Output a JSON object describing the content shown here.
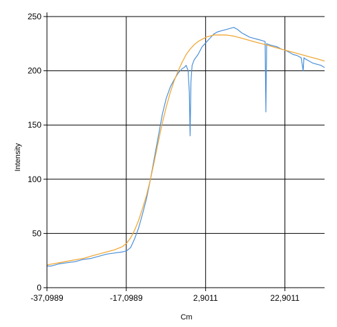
{
  "chart_data": {
    "type": "line",
    "title": "",
    "xlabel": "Cm",
    "ylabel": "Intensity",
    "xlim": [
      -37.0989,
      32.9011
    ],
    "ylim": [
      0,
      250
    ],
    "x_ticks": [
      -37.0989,
      -17.0989,
      2.9011,
      22.9011
    ],
    "x_tick_labels": [
      "-37,0989",
      "-17,0989",
      "2,9011",
      "22,9011"
    ],
    "y_ticks": [
      0,
      50,
      100,
      150,
      200,
      250
    ],
    "y_tick_labels": [
      "0",
      "50",
      "100",
      "150",
      "200",
      "250"
    ],
    "grid": true,
    "legend": "none",
    "series": [
      {
        "style": "noisy measured trace",
        "color": "#4a8fd9",
        "x": [
          -37.1,
          -36,
          -34,
          -32,
          -30,
          -28,
          -26,
          -24,
          -22,
          -20,
          -18,
          -17,
          -16,
          -15,
          -14,
          -13,
          -12,
          -11,
          -10,
          -9,
          -8,
          -7,
          -6,
          -5,
          -4.5,
          -4,
          -3.5,
          -3,
          -2.5,
          -2,
          -1.5,
          -1.2,
          -1.0,
          -0.8,
          -0.5,
          0,
          1,
          2,
          3,
          4,
          5,
          6,
          7,
          8,
          9,
          10,
          11,
          12,
          13,
          14,
          15,
          16,
          17,
          17.9,
          18.1,
          18.3,
          19,
          20,
          21,
          22,
          23,
          24,
          25,
          26,
          27,
          27.5,
          27.7,
          28,
          29,
          30,
          31,
          32,
          32.9
        ],
        "y": [
          20,
          20,
          22,
          23,
          24,
          26,
          27,
          29,
          31,
          32,
          33,
          34,
          37,
          45,
          55,
          68,
          82,
          100,
          120,
          140,
          160,
          175,
          185,
          192,
          195,
          198,
          200,
          202,
          203,
          205,
          200,
          180,
          140,
          190,
          205,
          210,
          215,
          222,
          226,
          230,
          234,
          236,
          237,
          238,
          239,
          240,
          238,
          235,
          233,
          231,
          230,
          229,
          228,
          227,
          162,
          225,
          224,
          223,
          222,
          220,
          219,
          217,
          215,
          214,
          212,
          200,
          212,
          211,
          209,
          207,
          206,
          205,
          203
        ]
      },
      {
        "style": "smooth fitted curve",
        "color": "#f0a838",
        "x": [
          -37.1,
          -34,
          -31,
          -28,
          -25,
          -22,
          -20,
          -18,
          -17,
          -16,
          -15,
          -14,
          -13,
          -12,
          -11,
          -10,
          -9,
          -8,
          -7,
          -6,
          -5,
          -4,
          -3,
          -2,
          -1,
          0,
          1,
          2,
          3,
          4,
          5,
          6,
          7,
          8,
          9,
          10,
          11,
          12,
          13,
          15,
          17,
          19,
          21,
          23,
          25,
          27,
          29,
          31,
          32.9
        ],
        "y": [
          21,
          23,
          25,
          27,
          30,
          33,
          35,
          38,
          41,
          46,
          53,
          62,
          73,
          85,
          100,
          117,
          135,
          152,
          167,
          180,
          191,
          200,
          208,
          215,
          220,
          224,
          227,
          229,
          231,
          232,
          233,
          233,
          233,
          233,
          232.5,
          232,
          231,
          230,
          229,
          227,
          225,
          223,
          221,
          219,
          217,
          215,
          213,
          211,
          209
        ]
      }
    ]
  }
}
